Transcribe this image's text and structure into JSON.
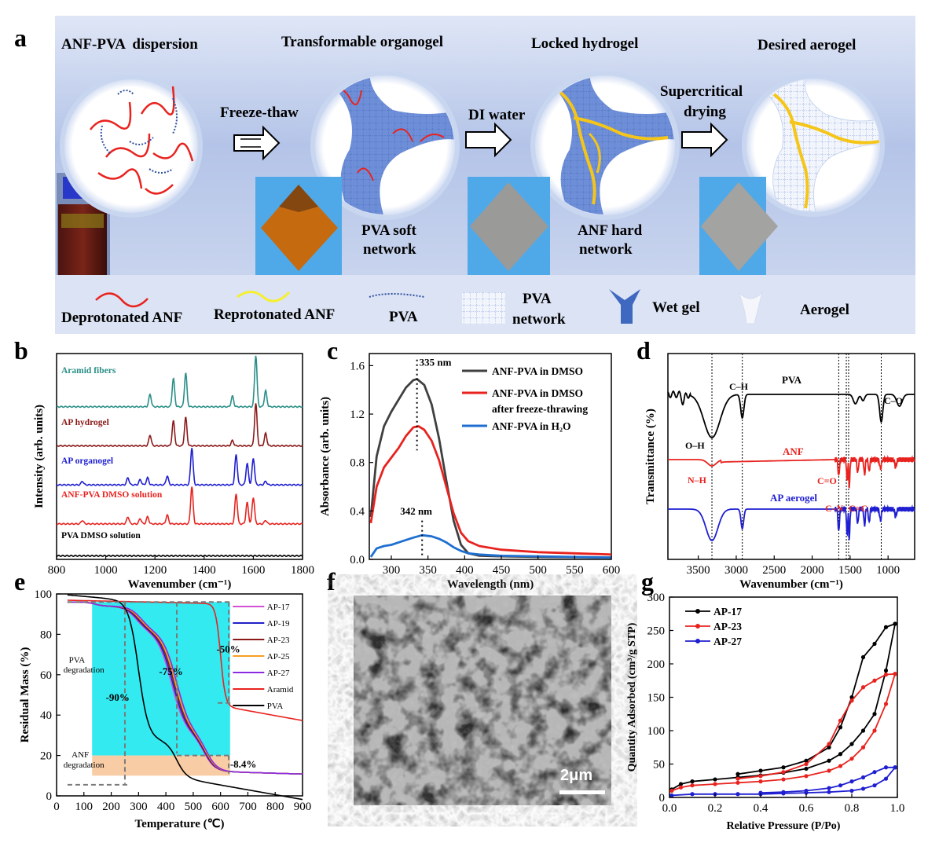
{
  "panel_labels": [
    "a",
    "b",
    "c",
    "d",
    "e",
    "f",
    "g"
  ],
  "schematic": {
    "stage_titles": [
      "ANF-PVA  dispersion",
      "Transformable organogel",
      "Locked hydrogel",
      "Desired aerogel"
    ],
    "arrow_labels": [
      "Freeze-thaw",
      "DI water",
      "Supercritical",
      "drying"
    ],
    "network_labels": [
      "PVA soft",
      "network",
      "ANF hard",
      "network"
    ],
    "legend": [
      "Deprotonated ANF",
      "Reprotonated ANF",
      "PVA",
      "PVA",
      "network",
      "Wet gel",
      "Aerogel"
    ],
    "colors": {
      "deprotonated_anf": "#e8231f",
      "reprotonated_anf": "#f5c518",
      "pva": "#2f4f9f",
      "wet_gel": "#4a74c4",
      "background": "#bccbea"
    }
  },
  "chart_data": [
    {
      "panel": "b",
      "type": "line",
      "xlabel": "Wavenumber (cm⁻¹)",
      "ylabel": "Intensity (arb. units)",
      "xlim": [
        800,
        1800
      ],
      "xticks": [
        800,
        1000,
        1200,
        1400,
        1600,
        1800
      ],
      "series": [
        {
          "name": "Aramid fibers",
          "color": "#2a8f87",
          "offset": 4.3,
          "peaks": [
            [
              1180,
              0.35
            ],
            [
              1275,
              0.8
            ],
            [
              1325,
              0.95
            ],
            [
              1515,
              0.3
            ],
            [
              1610,
              1.45
            ],
            [
              1650,
              0.45
            ]
          ]
        },
        {
          "name": "AP hydrogel",
          "color": "#8b1a1a",
          "offset": 3.2,
          "peaks": [
            [
              1180,
              0.3
            ],
            [
              1275,
              0.7
            ],
            [
              1325,
              0.8
            ],
            [
              1515,
              0.15
            ],
            [
              1610,
              1.2
            ],
            [
              1650,
              0.35
            ]
          ]
        },
        {
          "name": "AP organogel",
          "color": "#1f1fd1",
          "offset": 2.1,
          "peaks": [
            [
              905,
              0.1
            ],
            [
              1090,
              0.2
            ],
            [
              1140,
              0.15
            ],
            [
              1170,
              0.2
            ],
            [
              1250,
              0.25
            ],
            [
              1350,
              1.05
            ],
            [
              1530,
              0.85
            ],
            [
              1575,
              0.6
            ],
            [
              1600,
              0.75
            ],
            [
              1650,
              0.1
            ]
          ]
        },
        {
          "name": "ANF-PVA DMSO solution",
          "color": "#e8231f",
          "offset": 1.0,
          "peaks": [
            [
              905,
              0.1
            ],
            [
              1090,
              0.2
            ],
            [
              1140,
              0.15
            ],
            [
              1170,
              0.2
            ],
            [
              1250,
              0.25
            ],
            [
              1350,
              1.05
            ],
            [
              1530,
              0.85
            ],
            [
              1575,
              0.6
            ],
            [
              1600,
              0.75
            ],
            [
              1650,
              0.1
            ]
          ]
        },
        {
          "name": "PVA DMSO solution",
          "color": "#000000",
          "offset": 0.1,
          "peaks": []
        }
      ]
    },
    {
      "panel": "c",
      "type": "line",
      "xlabel": "Wavelength (nm)",
      "ylabel": "Absorbance (arb. units)",
      "xlim": [
        270,
        600
      ],
      "ylim": [
        0,
        1.7
      ],
      "xticks": [
        300,
        350,
        400,
        450,
        500,
        550,
        600
      ],
      "yticks": [
        0.0,
        0.4,
        0.8,
        1.2,
        1.6
      ],
      "annotations": [
        "335 nm",
        "342 nm"
      ],
      "series": [
        {
          "name": "ANF-PVA in DMSO",
          "color": "#404040",
          "points": [
            [
              272,
              0.35
            ],
            [
              280,
              0.85
            ],
            [
              290,
              1.1
            ],
            [
              300,
              1.22
            ],
            [
              310,
              1.32
            ],
            [
              320,
              1.42
            ],
            [
              330,
              1.48
            ],
            [
              335,
              1.49
            ],
            [
              345,
              1.44
            ],
            [
              355,
              1.28
            ],
            [
              365,
              1.0
            ],
            [
              375,
              0.65
            ],
            [
              385,
              0.32
            ],
            [
              395,
              0.12
            ],
            [
              405,
              0.05
            ],
            [
              420,
              0.03
            ],
            [
              450,
              0.025
            ],
            [
              500,
              0.02
            ],
            [
              550,
              0.018
            ],
            [
              600,
              0.015
            ]
          ]
        },
        {
          "name": "ANF-PVA in DMSO",
          "color": "#e8231f",
          "points": [
            [
              272,
              0.3
            ],
            [
              280,
              0.6
            ],
            [
              290,
              0.76
            ],
            [
              300,
              0.84
            ],
            [
              310,
              0.92
            ],
            [
              320,
              1.02
            ],
            [
              330,
              1.09
            ],
            [
              337,
              1.1
            ],
            [
              345,
              1.07
            ],
            [
              355,
              0.98
            ],
            [
              365,
              0.82
            ],
            [
              375,
              0.6
            ],
            [
              385,
              0.38
            ],
            [
              395,
              0.22
            ],
            [
              405,
              0.15
            ],
            [
              420,
              0.11
            ],
            [
              450,
              0.08
            ],
            [
              500,
              0.06
            ],
            [
              550,
              0.05
            ],
            [
              600,
              0.04
            ]
          ]
        },
        {
          "name": "ANF-PVA in H₂O",
          "color": "#1f6fd1",
          "points": [
            [
              272,
              0.02
            ],
            [
              280,
              0.09
            ],
            [
              290,
              0.11
            ],
            [
              300,
              0.12
            ],
            [
              310,
              0.14
            ],
            [
              320,
              0.16
            ],
            [
              330,
              0.18
            ],
            [
              342,
              0.2
            ],
            [
              355,
              0.19
            ],
            [
              365,
              0.17
            ],
            [
              375,
              0.14
            ],
            [
              385,
              0.1
            ],
            [
              395,
              0.07
            ],
            [
              405,
              0.05
            ],
            [
              420,
              0.04
            ],
            [
              450,
              0.03
            ],
            [
              500,
              0.025
            ],
            [
              550,
              0.02
            ],
            [
              600,
              0.015
            ]
          ]
        }
      ],
      "legend_text": [
        "ANF-PVA in DMSO",
        "ANF-PVA in DMSO",
        "after freeze-thrawing",
        "ANF-PVA in H₂O"
      ]
    },
    {
      "panel": "d",
      "type": "line",
      "xlabel": "Wavenumber (cm⁻¹)",
      "ylabel": "Transmittance (%)",
      "xlim": [
        3900,
        650
      ],
      "xticks": [
        3500,
        3000,
        2500,
        2000,
        1500,
        1000
      ],
      "reference_lines": [
        3320,
        2920,
        1650,
        1550,
        1520,
        1090
      ],
      "series_names": [
        "PVA",
        "ANF",
        "AP aerogel"
      ],
      "band_labels": [
        "C–H",
        "O–H",
        "C–O",
        "N–H",
        "C=O",
        "C–N",
        "C=C"
      ],
      "colors": [
        "#000000",
        "#e8231f",
        "#1f1fd1"
      ]
    },
    {
      "panel": "e",
      "type": "line",
      "xlabel": "Temperature (℃)",
      "ylabel": "Residual Mass (%)",
      "xlim": [
        0,
        900
      ],
      "ylim": [
        0,
        100
      ],
      "xticks": [
        0,
        100,
        200,
        300,
        400,
        500,
        600,
        700,
        800,
        900
      ],
      "yticks": [
        0,
        20,
        40,
        60,
        80,
        100
      ],
      "region_labels": [
        "PVA",
        "degradation",
        "ANF",
        "degradation"
      ],
      "annotations": [
        "-90%",
        "-75%",
        "-50%",
        "-8.4%"
      ],
      "series": [
        {
          "name": "AP-17",
          "color": "#d24fd2"
        },
        {
          "name": "AP-19",
          "color": "#2020c8"
        },
        {
          "name": "AP-23",
          "color": "#8b1a1a"
        },
        {
          "name": "AP-25",
          "color": "#f5a020"
        },
        {
          "name": "AP-27",
          "color": "#8b2be2"
        },
        {
          "name": "Aramid",
          "color": "#e8231f"
        },
        {
          "name": "PVA",
          "color": "#000000"
        }
      ]
    },
    {
      "panel": "g",
      "type": "line",
      "xlabel": "Relative Pressure (P/Po)",
      "ylabel": "Quantity Adsorbed (cm³/g STP)",
      "xlim": [
        0,
        1.0
      ],
      "ylim": [
        0,
        300
      ],
      "xticks": [
        0.0,
        0.2,
        0.4,
        0.6,
        0.8,
        1.0
      ],
      "yticks": [
        0,
        50,
        100,
        150,
        200,
        250,
        300
      ],
      "series": [
        {
          "name": "AP-17",
          "color": "#000000",
          "adsorption": [
            [
              0.01,
              12
            ],
            [
              0.05,
              20
            ],
            [
              0.1,
              24
            ],
            [
              0.2,
              27
            ],
            [
              0.3,
              30
            ],
            [
              0.4,
              33
            ],
            [
              0.5,
              37
            ],
            [
              0.6,
              43
            ],
            [
              0.7,
              55
            ],
            [
              0.75,
              65
            ],
            [
              0.8,
              80
            ],
            [
              0.85,
              100
            ],
            [
              0.9,
              125
            ],
            [
              0.95,
              190
            ],
            [
              0.99,
              260
            ]
          ],
          "desorption": [
            [
              0.99,
              260
            ],
            [
              0.95,
              255
            ],
            [
              0.9,
              230
            ],
            [
              0.85,
              210
            ],
            [
              0.8,
              150
            ],
            [
              0.75,
              105
            ],
            [
              0.7,
              75
            ],
            [
              0.6,
              55
            ],
            [
              0.5,
              45
            ],
            [
              0.4,
              40
            ],
            [
              0.3,
              35
            ]
          ]
        },
        {
          "name": "AP-23",
          "color": "#e8231f",
          "adsorption": [
            [
              0.01,
              10
            ],
            [
              0.05,
              15
            ],
            [
              0.1,
              18
            ],
            [
              0.2,
              20
            ],
            [
              0.3,
              22
            ],
            [
              0.4,
              24
            ],
            [
              0.5,
              27
            ],
            [
              0.6,
              32
            ],
            [
              0.7,
              40
            ],
            [
              0.75,
              47
            ],
            [
              0.8,
              58
            ],
            [
              0.85,
              75
            ],
            [
              0.9,
              100
            ],
            [
              0.95,
              140
            ],
            [
              0.99,
              185
            ]
          ],
          "desorption": [
            [
              0.99,
              185
            ],
            [
              0.95,
              184
            ],
            [
              0.9,
              175
            ],
            [
              0.85,
              165
            ],
            [
              0.8,
              145
            ],
            [
              0.75,
              115
            ],
            [
              0.7,
              80
            ],
            [
              0.6,
              50
            ],
            [
              0.5,
              38
            ],
            [
              0.4,
              32
            ],
            [
              0.3,
              28
            ]
          ]
        },
        {
          "name": "AP-27",
          "color": "#1f1fd1",
          "adsorption": [
            [
              0.01,
              3
            ],
            [
              0.1,
              5
            ],
            [
              0.2,
              5
            ],
            [
              0.3,
              5
            ],
            [
              0.4,
              5
            ],
            [
              0.5,
              6
            ],
            [
              0.6,
              7
            ],
            [
              0.7,
              8
            ],
            [
              0.8,
              10
            ],
            [
              0.85,
              13
            ],
            [
              0.9,
              18
            ],
            [
              0.95,
              28
            ],
            [
              0.99,
              45
            ]
          ],
          "desorption": [
            [
              0.99,
              45
            ],
            [
              0.95,
              45
            ],
            [
              0.9,
              38
            ],
            [
              0.85,
              30
            ],
            [
              0.8,
              24
            ],
            [
              0.75,
              18
            ],
            [
              0.7,
              14
            ],
            [
              0.6,
              10
            ],
            [
              0.5,
              8
            ],
            [
              0.4,
              7
            ]
          ]
        }
      ]
    }
  ],
  "sem": {
    "scale_bar": "2μm"
  }
}
